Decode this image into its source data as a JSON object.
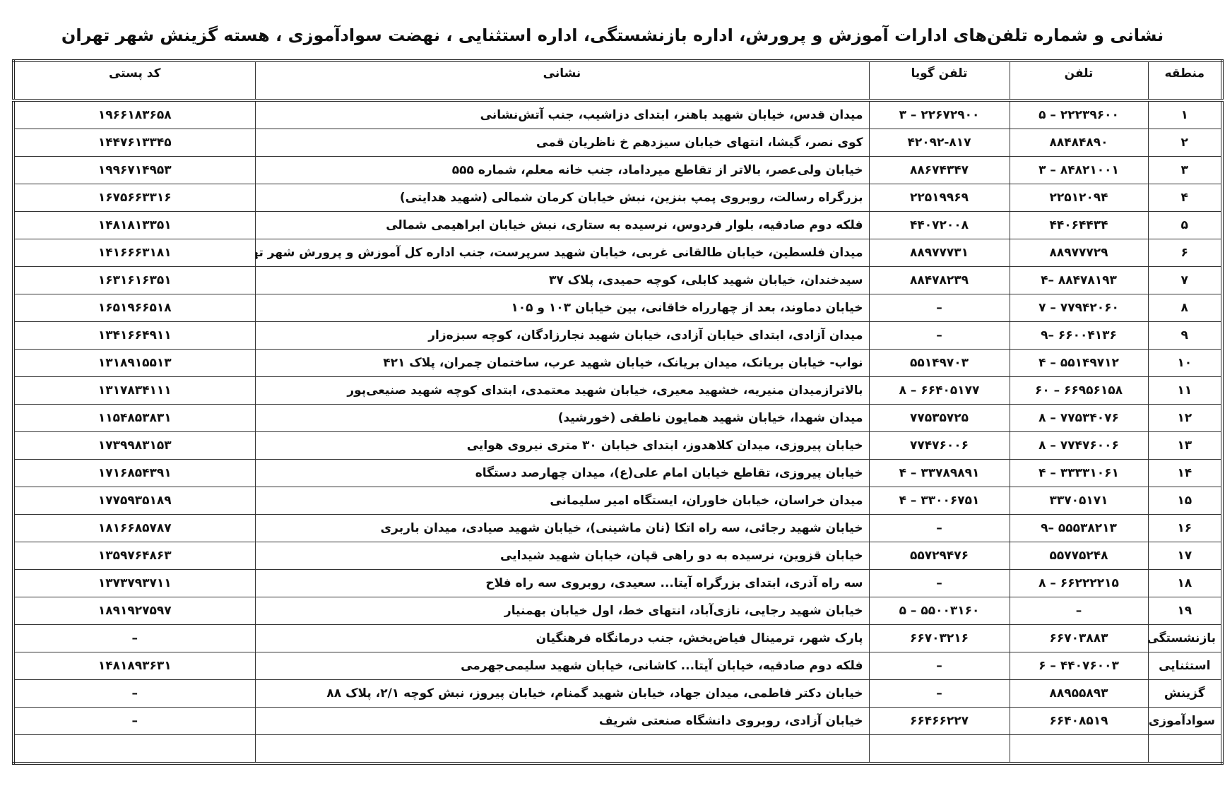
{
  "title": "نشانی و شماره تلفن‌های ادارات آموزش و پرورش، اداره بازنشستگی، اداره استثنایی ، نهضت سوادآموزی ، هسته گزینش شهر تهران",
  "table": {
    "header": [
      "منطقه",
      "تلفن",
      "تلفن گویا",
      "نشانی",
      "کد پستی"
    ],
    "rows": [
      [
        "۱",
        "۲۲۲۳۹۶۰۰ – ۵",
        "۲۲۶۷۲۹۰۰ – ۳",
        "میدان قدس، خیابان شهید باهنر، ابتدای دزاشیب، جنب آتش‌نشانی",
        "۱۹۶۶۱۸۳۶۵۸"
      ],
      [
        "۲",
        "۸۸۴۸۴۸۹۰",
        "۴۲۰۹۲-۸۱۷",
        "کوی نصر، گیشا، انتهای خیابان سیزدهم خ ناظریان قمی",
        "۱۴۴۷۶۱۳۳۴۵"
      ],
      [
        "۳",
        "۸۴۸۲۱۰۰۱ – ۳",
        "۸۸۶۷۴۳۴۷",
        "خیابان ولی‌عصر، بالاتر از تقاطع میرداماد، جنب خانه معلم، شماره ۵۵۵",
        "۱۹۹۶۷۱۴۹۵۳"
      ],
      [
        "۴",
        "۲۲۵۱۲۰۹۴",
        "۲۲۵۱۹۹۶۹",
        "بزرگراه رسالت، روبروی پمپ بنزین، نبش خیابان کرمان شمالی (شهید هدایتی)",
        "۱۶۷۵۶۶۳۳۱۶"
      ],
      [
        "۵",
        "۴۴۰۶۴۴۳۴",
        "۴۴۰۷۲۰۰۸",
        "فلکه دوم صادقیه، بلوار فردوس، نرسیده به ستاری، نبش خیابان ابراهیمی شمالی",
        "۱۴۸۱۸۱۳۳۵۱"
      ],
      [
        "۶",
        "۸۸۹۷۷۷۲۹",
        "۸۸۹۷۷۷۳۱",
        "میدان فلسطین، خیابان طالقانی غربی، خیابان شهید سرپرست، جنب اداره کل آموزش و پرورش شهر تهران",
        "۱۴۱۶۶۶۳۱۸۱"
      ],
      [
        "۷",
        "۸۸۴۷۸۱۹۳ –۴",
        "۸۸۴۷۸۲۳۹",
        "سیدخندان، خیابان شهید کابلی، کوچه حمیدی، پلاک ۳۷",
        "۱۶۳۱۶۱۶۳۵۱"
      ],
      [
        "۸",
        "۷۷۹۴۲۰۶۰ – ۷",
        "–",
        "خیابان دماوند، بعد از چهارراه خاقانی، بین خیابان ۱۰۳ و ۱۰۵",
        "۱۶۵۱۹۶۶۵۱۸"
      ],
      [
        "۹",
        "۶۶۰۰۴۱۳۶ –۹",
        "–",
        "میدان آزادی، ابتدای خیابان آزادی، خیابان شهید نجارزادگان، کوچه سبزه‌زار",
        "۱۳۴۱۶۶۴۹۱۱"
      ],
      [
        "۱۰",
        "۵۵۱۴۹۷۱۲ – ۴",
        "۵۵۱۴۹۷۰۳",
        "نواب- خیابان بریانک، میدان بریانک، خیابان شهید عرب، ساختمان چمران، پلاک ۴۲۱",
        "۱۳۱۸۹۱۵۵۱۳"
      ],
      [
        "۱۱",
        "۶۶۹۵۶۱۵۸ – ۶۰",
        "۶۶۴۰۵۱۷۷ – ۸",
        "بالاترازمیدان منیریه، خشهید معیری، خیابان شهید معتمدی، ابتدای کوچه شهید صنیعی‌پور",
        "۱۳۱۷۸۳۴۱۱۱"
      ],
      [
        "۱۲",
        "۷۷۵۳۴۰۷۶ – ۸",
        "۷۷۵۳۵۷۲۵",
        "میدان شهدا، خیابان شهید همایون ناطقی (خورشید)",
        "۱۱۵۴۸۵۳۸۳۱"
      ],
      [
        "۱۳",
        "۷۷۴۷۶۰۰۶ – ۸",
        "۷۷۴۷۶۰۰۶",
        "خیابان پیروزی، میدان کلاهدوز، ابتدای خیابان ۳۰ متری نیروی هوایی",
        "۱۷۳۹۹۸۳۱۵۳"
      ],
      [
        "۱۴",
        "۳۳۳۳۱۰۶۱ – ۴",
        "۳۳۷۸۹۸۹۱ – ۴",
        "خیابان پیروزی، تقاطع خیابان امام علی(ع)، میدان چهارصد دستگاه",
        "۱۷۱۶۸۵۴۳۹۱"
      ],
      [
        "۱۵",
        "۳۳۷۰۵۱۷۱",
        "۳۳۰۰۶۷۵۱ – ۴",
        "میدان خراسان، خیابان خاوران، ایستگاه امیر سلیمانی",
        "۱۷۷۵۹۳۵۱۸۹"
      ],
      [
        "۱۶",
        "۵۵۵۳۸۲۱۳ –۹",
        "–",
        "خیابان شهید رجائی، سه راه اتکا (نان ماشینی)، خیابان شهید صیادی، میدان باربری",
        "۱۸۱۶۶۸۵۷۸۷"
      ],
      [
        "۱۷",
        "۵۵۷۷۵۲۴۸",
        "۵۵۷۲۹۴۷۶",
        "خیابان قزوین، نرسیده به دو راهی قپان، خیابان شهید شیدایی",
        "۱۳۵۹۷۶۴۸۶۳"
      ],
      [
        "۱۸",
        "۶۶۲۲۲۲۱۵ – ۸",
        "–",
        "سه راه آذری، ابتدای بزرگراه آیتا... سعیدی، روبروی سه راه فلاح",
        "۱۳۷۳۷۹۳۷۱۱"
      ],
      [
        "۱۹",
        "–",
        "۵۵۰۰۳۱۶۰ – ۵",
        "خیابان شهید رجایی، نازی‌آباد، انتهای خط، اول خیابان بهمنیار",
        "۱۸۹۱۹۲۷۵۹۷"
      ],
      [
        "بازنشستگی",
        "۶۶۷۰۳۸۸۳",
        "۶۶۷۰۳۲۱۶",
        "پارک شهر، ترمینال فیاض‌بخش، جنب درمانگاه فرهنگیان",
        "–"
      ],
      [
        "استثنایی",
        "۴۴۰۷۶۰۰۳ – ۶",
        "–",
        "فلکه دوم صادقیه، خیابان آیتا... کاشانی، خیابان شهید سلیمی‌جهرمی",
        "۱۴۸۱۸۹۳۶۳۱"
      ],
      [
        "گزینش",
        "۸۸۹۵۵۸۹۳",
        "–",
        "خیابان دکتر فاطمی، میدان جهاد، خیابان شهید گمنام، خیابان پیروز، نبش کوچه ۲/۱، پلاک ۸۸",
        "–"
      ],
      [
        "سوادآموزی",
        "۶۶۴۰۸۵۱۹",
        "۶۶۴۶۶۲۲۷",
        "خیابان آزادی، روبروی دانشگاه صنعتی شریف",
        "–"
      ]
    ]
  }
}
